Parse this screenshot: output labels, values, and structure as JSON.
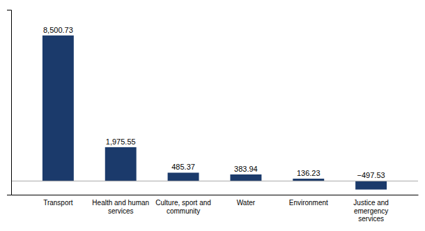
{
  "chart_data": {
    "type": "bar",
    "categories": [
      "Transport",
      "Health and human\nservices",
      "Culture, sport and\ncommunity",
      "Water",
      "Environment",
      "Justice and\nemergency\nservices"
    ],
    "values": [
      8500.73,
      1975.55,
      485.37,
      383.94,
      136.23,
      -497.53
    ],
    "value_labels": [
      "8,500.73",
      "1,975.55",
      "485.37",
      "383.94",
      "136.23",
      "−497.53"
    ],
    "data_labels": true,
    "color": "#1b3a6b",
    "ylim": [
      -800,
      10000
    ],
    "grid": false,
    "tick_labels": "x"
  }
}
